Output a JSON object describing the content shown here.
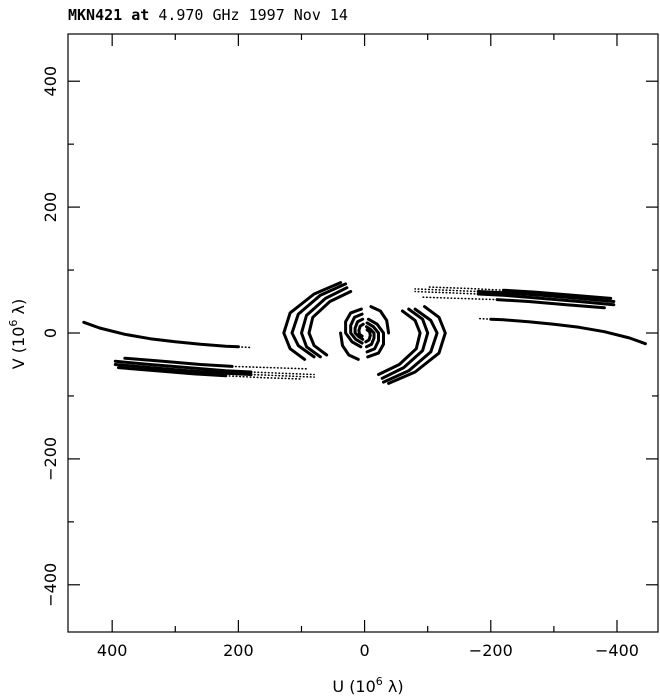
{
  "chart_data": {
    "type": "scatter",
    "title_parts": {
      "source": "MKN421",
      "at": "at",
      "freq": "4.970 GHz",
      "date": "1997 Nov 14"
    },
    "xlabel_prefix": "U (10",
    "xlabel_exp": "6",
    "xlabel_suffix": " λ)",
    "ylabel_prefix": "V (10",
    "ylabel_exp": "6",
    "ylabel_suffix": " λ)",
    "xlim": [
      470,
      -465
    ],
    "ylim": [
      -475,
      475
    ],
    "x_major_ticks": [
      400,
      200,
      0,
      -200,
      -400
    ],
    "y_major_ticks": [
      400,
      200,
      0,
      -200,
      -400
    ],
    "x_tick_labels": [
      "400",
      "200",
      "0",
      "−200",
      "−400"
    ],
    "y_tick_labels": [
      "400",
      "200",
      "0",
      "−200",
      "−400"
    ],
    "x_minor_step": 100,
    "y_minor_step": 100,
    "grid": false,
    "color": "#000000",
    "tracks": [
      {
        "style": "solid",
        "points": [
          [
            445,
            17
          ],
          [
            420,
            8
          ],
          [
            380,
            -2
          ],
          [
            340,
            -9
          ],
          [
            300,
            -14
          ],
          [
            260,
            -18
          ],
          [
            220,
            -21
          ],
          [
            200,
            -22
          ]
        ]
      },
      {
        "style": "dotted",
        "points": [
          [
            200,
            -22
          ],
          [
            180,
            -23
          ]
        ]
      },
      {
        "style": "solid",
        "points": [
          [
            -445,
            -17
          ],
          [
            -420,
            -8
          ],
          [
            -380,
            2
          ],
          [
            -340,
            9
          ],
          [
            -300,
            14
          ],
          [
            -260,
            18
          ],
          [
            -220,
            21
          ],
          [
            -200,
            22
          ]
        ]
      },
      {
        "style": "dotted",
        "points": [
          [
            -200,
            22
          ],
          [
            -180,
            23
          ]
        ]
      },
      {
        "style": "solid",
        "points": [
          [
            395,
            -45
          ],
          [
            340,
            -50
          ],
          [
            280,
            -55
          ],
          [
            220,
            -60
          ],
          [
            180,
            -62
          ]
        ]
      },
      {
        "style": "dotted",
        "points": [
          [
            180,
            -62
          ],
          [
            130,
            -64
          ],
          [
            80,
            -66
          ]
        ]
      },
      {
        "style": "solid",
        "points": [
          [
            395,
            -50
          ],
          [
            340,
            -55
          ],
          [
            280,
            -60
          ],
          [
            220,
            -64
          ],
          [
            180,
            -66
          ]
        ]
      },
      {
        "style": "dotted",
        "points": [
          [
            180,
            -66
          ],
          [
            130,
            -68
          ],
          [
            80,
            -70
          ]
        ]
      },
      {
        "style": "solid",
        "points": [
          [
            380,
            -40
          ],
          [
            320,
            -45
          ],
          [
            260,
            -50
          ],
          [
            210,
            -53
          ]
        ]
      },
      {
        "style": "dotted",
        "points": [
          [
            210,
            -53
          ],
          [
            150,
            -55
          ],
          [
            90,
            -57
          ]
        ]
      },
      {
        "style": "solid",
        "points": [
          [
            390,
            -55
          ],
          [
            330,
            -60
          ],
          [
            270,
            -65
          ],
          [
            220,
            -68
          ]
        ]
      },
      {
        "style": "dotted",
        "points": [
          [
            220,
            -68
          ],
          [
            160,
            -71
          ],
          [
            100,
            -73
          ]
        ]
      },
      {
        "style": "solid",
        "points": [
          [
            -395,
            45
          ],
          [
            -340,
            50
          ],
          [
            -280,
            55
          ],
          [
            -220,
            60
          ],
          [
            -180,
            62
          ]
        ]
      },
      {
        "style": "dotted",
        "points": [
          [
            -180,
            62
          ],
          [
            -130,
            64
          ],
          [
            -80,
            66
          ]
        ]
      },
      {
        "style": "solid",
        "points": [
          [
            -395,
            50
          ],
          [
            -340,
            55
          ],
          [
            -280,
            60
          ],
          [
            -220,
            64
          ],
          [
            -180,
            66
          ]
        ]
      },
      {
        "style": "dotted",
        "points": [
          [
            -180,
            66
          ],
          [
            -130,
            68
          ],
          [
            -80,
            70
          ]
        ]
      },
      {
        "style": "solid",
        "points": [
          [
            -380,
            40
          ],
          [
            -320,
            45
          ],
          [
            -260,
            50
          ],
          [
            -210,
            53
          ]
        ]
      },
      {
        "style": "dotted",
        "points": [
          [
            -210,
            53
          ],
          [
            -150,
            55
          ],
          [
            -90,
            57
          ]
        ]
      },
      {
        "style": "solid",
        "points": [
          [
            -390,
            55
          ],
          [
            -330,
            60
          ],
          [
            -270,
            65
          ],
          [
            -220,
            68
          ]
        ]
      },
      {
        "style": "dotted",
        "points": [
          [
            -220,
            68
          ],
          [
            -160,
            71
          ],
          [
            -100,
            73
          ]
        ]
      },
      {
        "style": "solid",
        "points": [
          [
            30,
            78
          ],
          [
            70,
            60
          ],
          [
            105,
            30
          ],
          [
            115,
            0
          ],
          [
            105,
            -20
          ],
          [
            80,
            -38
          ]
        ]
      },
      {
        "style": "solid",
        "points": [
          [
            28,
            72
          ],
          [
            62,
            55
          ],
          [
            92,
            28
          ],
          [
            100,
            0
          ],
          [
            92,
            -22
          ],
          [
            70,
            -38
          ]
        ]
      },
      {
        "style": "solid",
        "points": [
          [
            22,
            66
          ],
          [
            55,
            50
          ],
          [
            82,
            25
          ],
          [
            88,
            0
          ],
          [
            80,
            -20
          ],
          [
            60,
            -35
          ]
        ]
      },
      {
        "style": "solid",
        "points": [
          [
            38,
            80
          ],
          [
            80,
            62
          ],
          [
            118,
            32
          ],
          [
            128,
            0
          ],
          [
            118,
            -25
          ],
          [
            95,
            -42
          ]
        ]
      },
      {
        "style": "solid",
        "points": [
          [
            -30,
            -78
          ],
          [
            -70,
            -60
          ],
          [
            -105,
            -30
          ],
          [
            -115,
            0
          ],
          [
            -105,
            20
          ],
          [
            -80,
            38
          ]
        ]
      },
      {
        "style": "solid",
        "points": [
          [
            -28,
            -72
          ],
          [
            -62,
            -55
          ],
          [
            -92,
            -28
          ],
          [
            -100,
            0
          ],
          [
            -92,
            22
          ],
          [
            -70,
            38
          ]
        ]
      },
      {
        "style": "solid",
        "points": [
          [
            -22,
            -66
          ],
          [
            -55,
            -50
          ],
          [
            -82,
            -25
          ],
          [
            -88,
            0
          ],
          [
            -80,
            20
          ],
          [
            -60,
            35
          ]
        ]
      },
      {
        "style": "solid",
        "points": [
          [
            -38,
            -80
          ],
          [
            -80,
            -62
          ],
          [
            -118,
            -32
          ],
          [
            -128,
            0
          ],
          [
            -118,
            25
          ],
          [
            -95,
            42
          ]
        ]
      },
      {
        "style": "solid",
        "points": [
          [
            5,
            38
          ],
          [
            22,
            32
          ],
          [
            30,
            18
          ],
          [
            30,
            0
          ],
          [
            20,
            -14
          ],
          [
            6,
            -22
          ]
        ]
      },
      {
        "style": "solid",
        "points": [
          [
            -5,
            -38
          ],
          [
            -22,
            -32
          ],
          [
            -30,
            -18
          ],
          [
            -30,
            0
          ],
          [
            -20,
            14
          ],
          [
            -6,
            22
          ]
        ]
      },
      {
        "style": "solid",
        "points": [
          [
            4,
            30
          ],
          [
            16,
            25
          ],
          [
            22,
            12
          ],
          [
            22,
            0
          ],
          [
            14,
            -10
          ],
          [
            4,
            -16
          ]
        ]
      },
      {
        "style": "solid",
        "points": [
          [
            -4,
            -30
          ],
          [
            -16,
            -25
          ],
          [
            -22,
            -12
          ],
          [
            -22,
            0
          ],
          [
            -14,
            10
          ],
          [
            -4,
            16
          ]
        ]
      },
      {
        "style": "solid",
        "points": [
          [
            3,
            22
          ],
          [
            11,
            18
          ],
          [
            15,
            8
          ],
          [
            15,
            0
          ],
          [
            9,
            -6
          ],
          [
            3,
            -10
          ]
        ]
      },
      {
        "style": "solid",
        "points": [
          [
            -3,
            -22
          ],
          [
            -11,
            -18
          ],
          [
            -15,
            -8
          ],
          [
            -15,
            0
          ],
          [
            -9,
            6
          ],
          [
            -3,
            10
          ]
        ]
      },
      {
        "style": "solid",
        "points": [
          [
            2,
            14
          ],
          [
            7,
            11
          ],
          [
            9,
            4
          ],
          [
            8,
            -2
          ],
          [
            4,
            -5
          ]
        ]
      },
      {
        "style": "solid",
        "points": [
          [
            -2,
            -14
          ],
          [
            -7,
            -11
          ],
          [
            -9,
            -4
          ],
          [
            -8,
            2
          ],
          [
            -4,
            5
          ]
        ]
      },
      {
        "style": "solid",
        "points": [
          [
            38,
            0
          ],
          [
            35,
            -20
          ],
          [
            25,
            -35
          ],
          [
            10,
            -42
          ]
        ]
      },
      {
        "style": "solid",
        "points": [
          [
            -38,
            0
          ],
          [
            -35,
            20
          ],
          [
            -25,
            35
          ],
          [
            -10,
            42
          ]
        ]
      }
    ]
  }
}
